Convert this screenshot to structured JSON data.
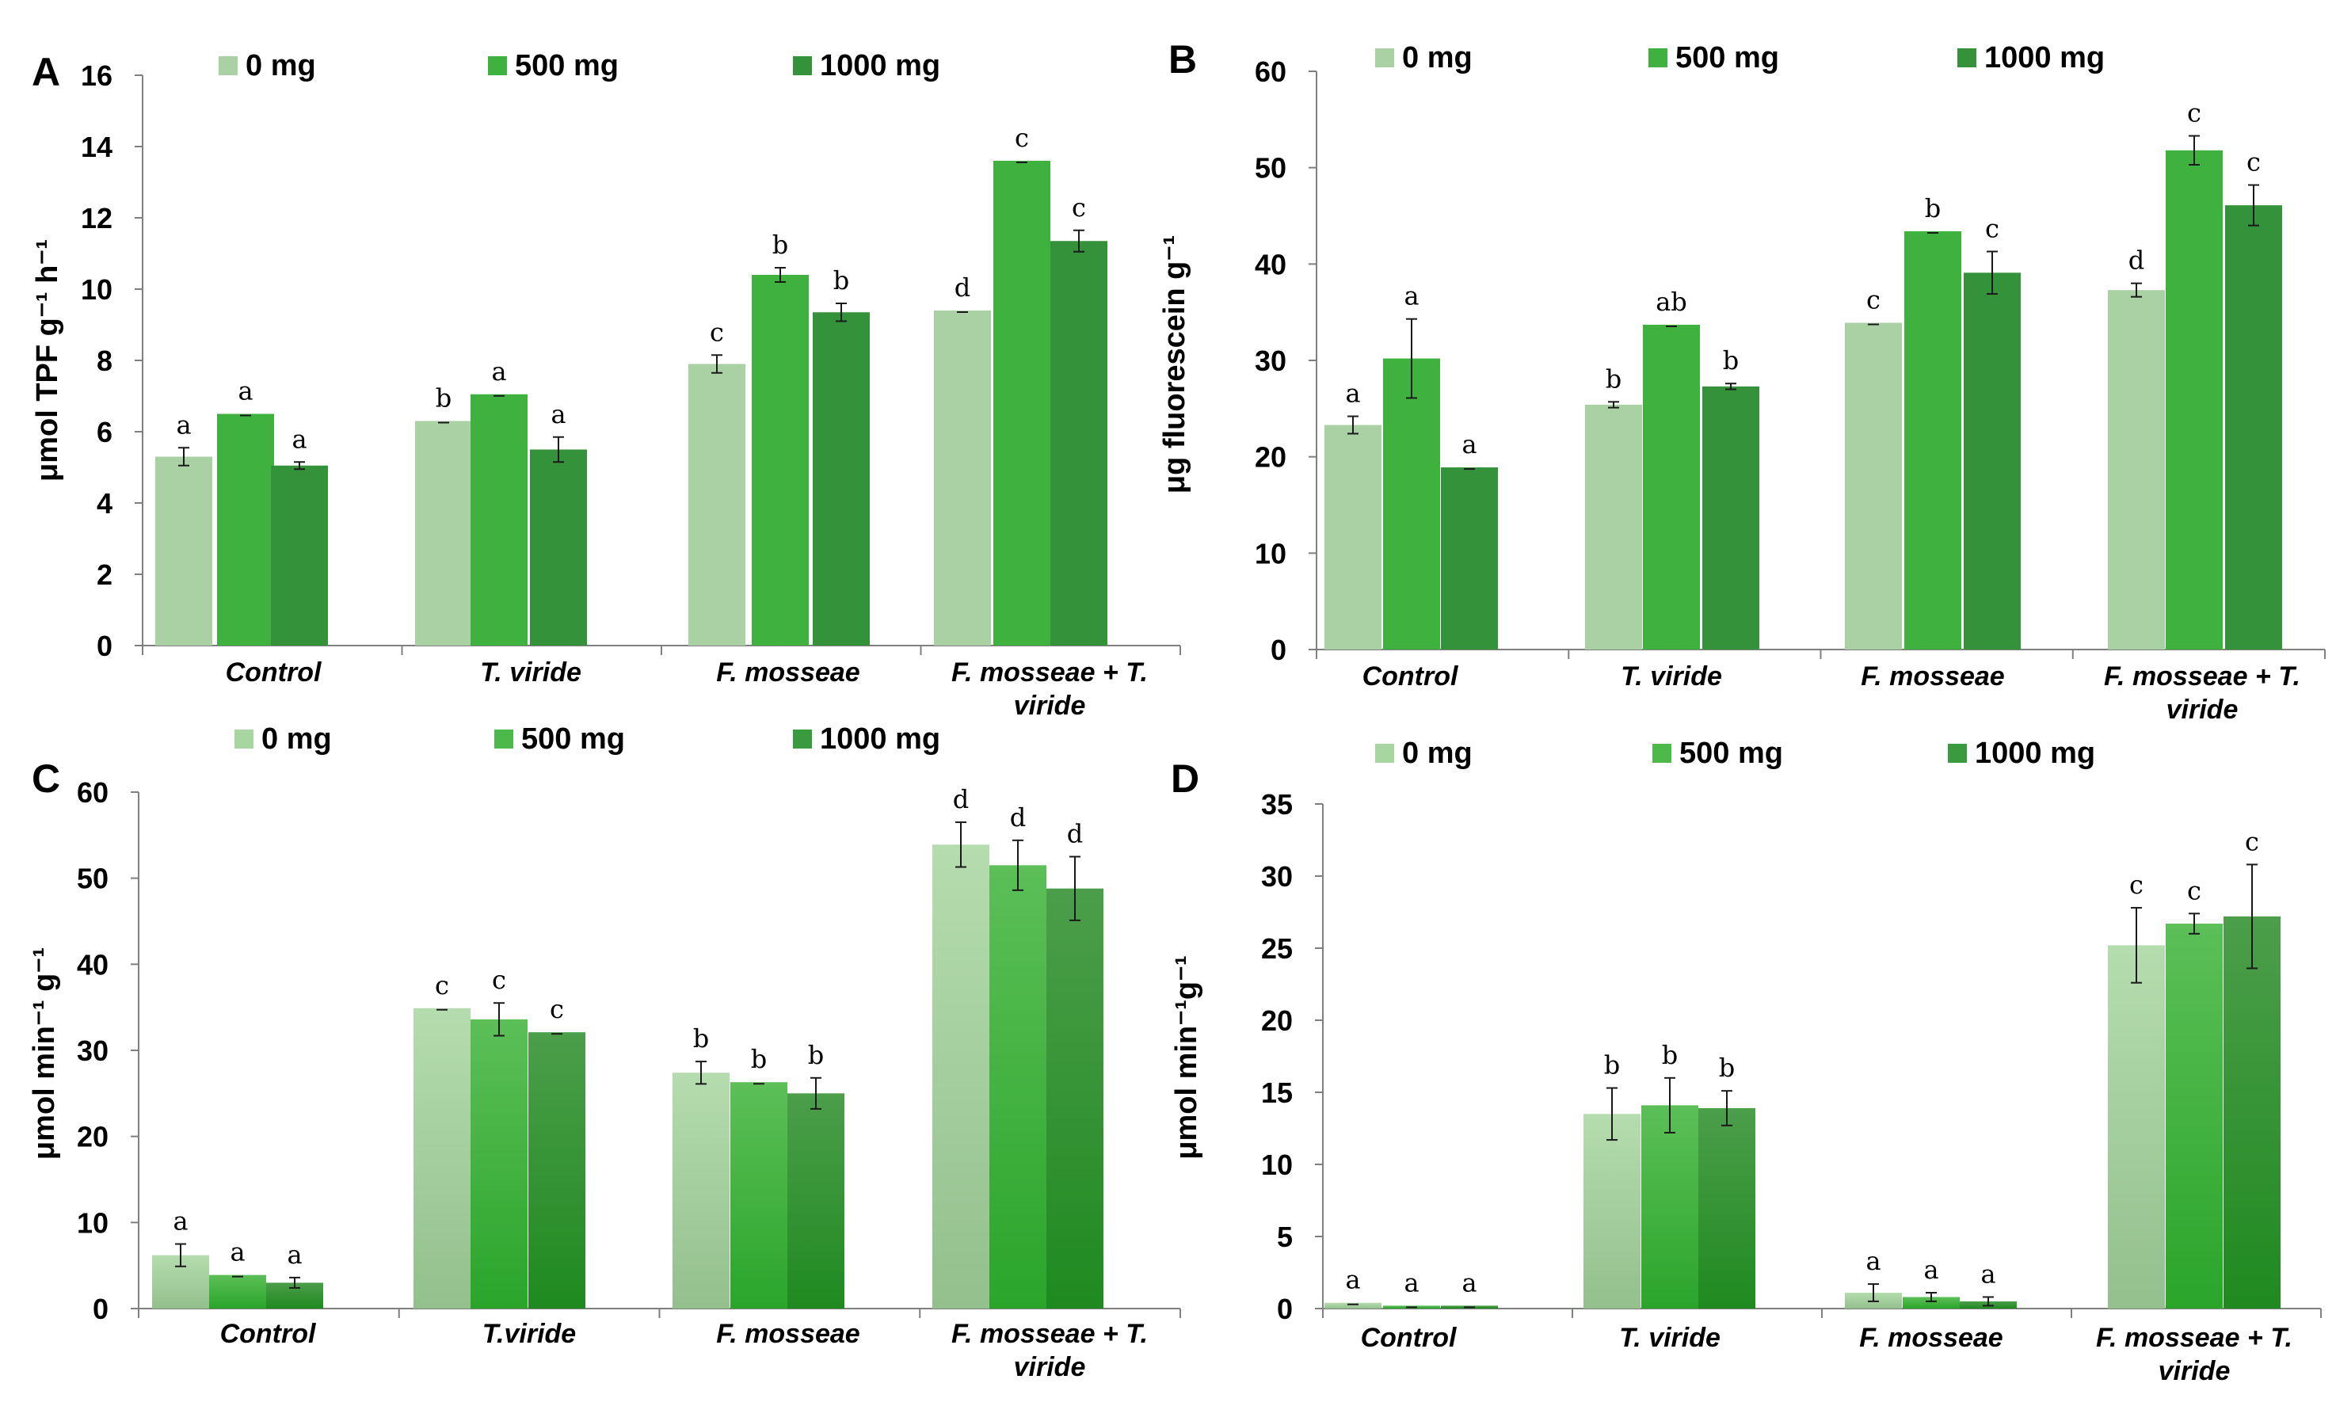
{
  "chart_data": [
    {
      "panel_label": "A",
      "type": "bar",
      "categories": [
        "Control",
        "T. viride",
        "F. mosseae",
        "F. mosseae + T. viride"
      ],
      "legend": [
        "0 mg",
        "500 mg",
        "1000 mg"
      ],
      "ylabel": "μmol TPF g⁻¹ h⁻¹",
      "ylim": [
        0,
        16
      ],
      "yticks": [
        0,
        2,
        4,
        6,
        8,
        10,
        12,
        14,
        16
      ],
      "series": [
        {
          "name": "0 mg",
          "color": "#a9d1a4",
          "values": [
            5.3,
            6.3,
            7.9,
            9.4
          ],
          "errors": [
            0.25,
            0.0,
            0.25,
            0.0
          ],
          "letters": [
            "a",
            "b",
            "c",
            "d"
          ]
        },
        {
          "name": "500 mg",
          "color": "#3fb13f",
          "values": [
            6.5,
            7.05,
            10.4,
            13.6
          ],
          "errors": [
            0.0,
            0.0,
            0.2,
            0.0
          ],
          "letters": [
            "a",
            "a",
            "b",
            "c"
          ]
        },
        {
          "name": "1000 mg",
          "color": "#34933a",
          "values": [
            5.05,
            5.5,
            9.35,
            11.35
          ],
          "errors": [
            0.1,
            0.35,
            0.25,
            0.3
          ],
          "letters": [
            "a",
            "a",
            "b",
            "c"
          ]
        }
      ]
    },
    {
      "panel_label": "B",
      "type": "bar",
      "categories": [
        "Control",
        "T. viride",
        "F. mosseae",
        "F. mosseae + T. viride"
      ],
      "legend": [
        "0 mg",
        "500 mg",
        "1000 mg"
      ],
      "ylabel": "μg fluorescein g⁻¹",
      "ylim": [
        0,
        60
      ],
      "yticks": [
        0,
        10,
        20,
        30,
        40,
        50,
        60
      ],
      "series": [
        {
          "name": "0 mg",
          "color": "#a9d1a4",
          "values": [
            23.3,
            25.4,
            33.9,
            37.3
          ],
          "errors": [
            0.9,
            0.3,
            0.0,
            0.7
          ],
          "letters": [
            "a",
            "b",
            "c",
            "d"
          ]
        },
        {
          "name": "500 mg",
          "color": "#3fb13f",
          "values": [
            30.2,
            33.7,
            43.4,
            51.8
          ],
          "errors": [
            4.1,
            0.0,
            0.0,
            1.5
          ],
          "letters": [
            "a",
            "ab",
            "b",
            "c"
          ]
        },
        {
          "name": "1000 mg",
          "color": "#34933a",
          "values": [
            18.9,
            27.3,
            39.1,
            46.1
          ],
          "errors": [
            0.0,
            0.3,
            2.2,
            2.1
          ],
          "letters": [
            "a",
            "b",
            "c",
            "c"
          ]
        }
      ]
    },
    {
      "panel_label": "C",
      "type": "bar",
      "categories": [
        "Control",
        "T.viride",
        "F. mosseae",
        "F. mosseae + T. viride"
      ],
      "legend": [
        "0 mg",
        "500 mg",
        "1000 mg"
      ],
      "ylabel": "μmol min⁻¹ g⁻¹",
      "ylim": [
        0,
        60
      ],
      "yticks": [
        0,
        10,
        20,
        30,
        40,
        50,
        60
      ],
      "series": [
        {
          "name": "0 mg",
          "color": "#a8d6a0",
          "values": [
            6.2,
            34.9,
            27.4,
            53.9
          ],
          "errors": [
            1.3,
            0.0,
            1.3,
            2.6
          ],
          "letters": [
            "a",
            "c",
            "b",
            "d"
          ]
        },
        {
          "name": "500 mg",
          "color": "#4cb94a",
          "values": [
            3.9,
            33.6,
            26.3,
            51.5
          ],
          "errors": [
            0.0,
            1.9,
            0.0,
            2.9
          ],
          "letters": [
            "a",
            "c",
            "b",
            "d"
          ]
        },
        {
          "name": "1000 mg",
          "color": "#3a9a3e",
          "values": [
            3.0,
            32.1,
            25.0,
            48.8
          ],
          "errors": [
            0.6,
            0.0,
            1.8,
            3.7
          ],
          "letters": [
            "a",
            "c",
            "b",
            "d"
          ]
        }
      ]
    },
    {
      "panel_label": "D",
      "type": "bar",
      "categories": [
        "Control",
        "T. viride",
        "F. mosseae",
        "F. mosseae + T. viride"
      ],
      "legend": [
        "0 mg",
        "500 mg",
        "1000 mg"
      ],
      "ylabel": "μmol min⁻¹g⁻¹",
      "ylim": [
        0,
        35
      ],
      "yticks": [
        0,
        5,
        10,
        15,
        20,
        25,
        30,
        35
      ],
      "series": [
        {
          "name": "0 mg",
          "color": "#a8d6a0",
          "values": [
            0.4,
            13.5,
            1.1,
            25.2
          ],
          "errors": [
            0.0,
            1.8,
            0.6,
            2.6
          ],
          "letters": [
            "a",
            "b",
            "a",
            "c"
          ]
        },
        {
          "name": "500 mg",
          "color": "#4cb94a",
          "values": [
            0.2,
            14.1,
            0.8,
            26.7
          ],
          "errors": [
            0.0,
            1.9,
            0.3,
            0.7
          ],
          "letters": [
            "a",
            "b",
            "a",
            "c"
          ]
        },
        {
          "name": "1000 mg",
          "color": "#3a9a3e",
          "values": [
            0.2,
            13.9,
            0.5,
            27.2
          ],
          "errors": [
            0.0,
            1.2,
            0.3,
            3.6
          ],
          "letters": [
            "a",
            "b",
            "a",
            "c"
          ]
        }
      ]
    }
  ]
}
